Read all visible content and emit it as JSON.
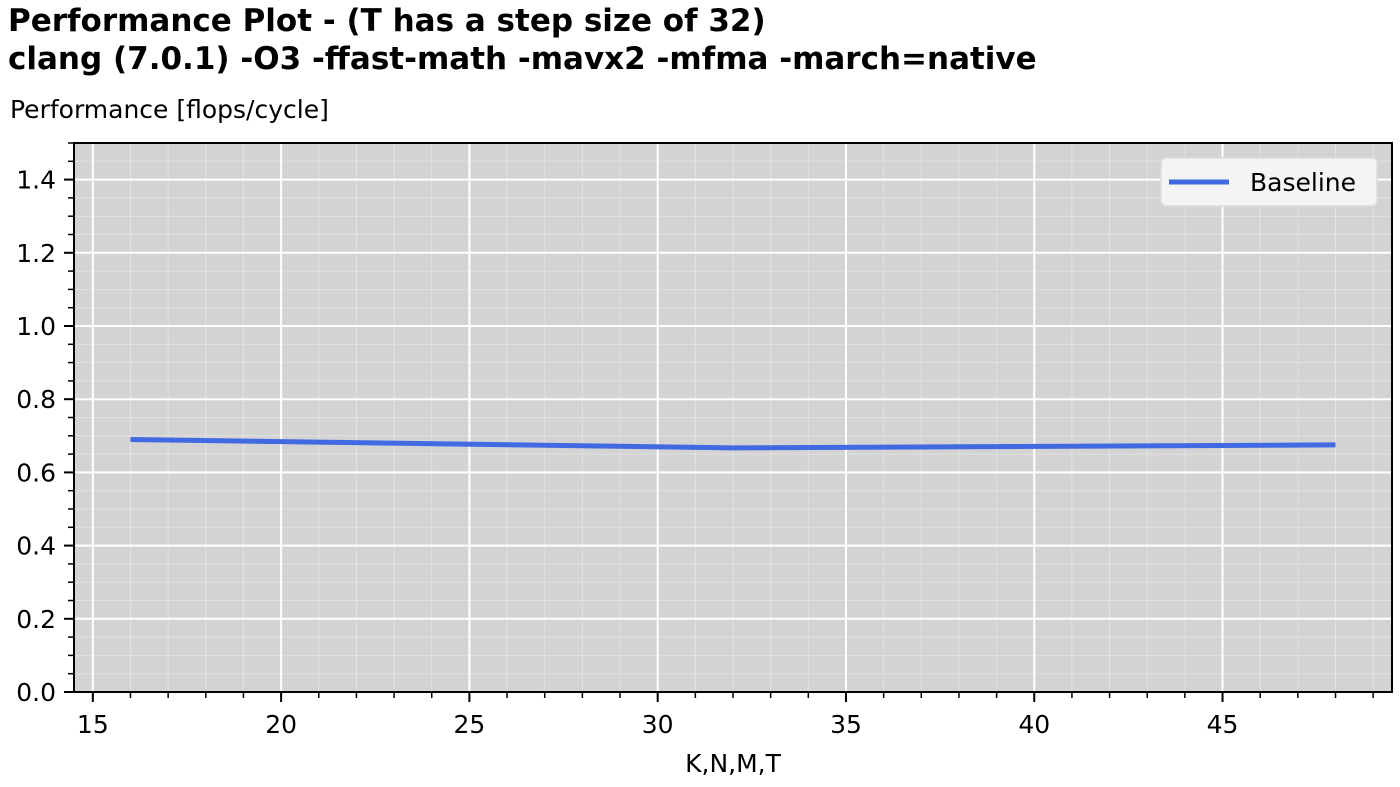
{
  "title_line1": "Performance Plot  -  (T has a step size of 32)",
  "title_line2": "clang (7.0.1) -O3 -ffast-math -mavx2 -mfma -march=native",
  "chart_data": {
    "type": "line",
    "ylabel": "Performance [flops/cycle]",
    "xlabel": "K,N,M,T",
    "xlim": [
      14.5,
      49.5
    ],
    "ylim": [
      0.0,
      1.5
    ],
    "xticks": [
      15,
      20,
      25,
      30,
      35,
      40,
      45
    ],
    "xtick_labels": [
      "15",
      "20",
      "25",
      "30",
      "35",
      "40",
      "45"
    ],
    "yticks": [
      0.0,
      0.2,
      0.4,
      0.6,
      0.8,
      1.0,
      1.2,
      1.4
    ],
    "ytick_labels": [
      "0.0",
      "0.2",
      "0.4",
      "0.6",
      "0.8",
      "1.0",
      "1.2",
      "1.4"
    ],
    "grid": true,
    "legend_position": "top-right",
    "background": "#d3d3d3",
    "series": [
      {
        "name": "Baseline",
        "color": "#4169e1",
        "x": [
          16,
          32,
          48
        ],
        "y": [
          0.69,
          0.667,
          0.675
        ]
      }
    ]
  }
}
